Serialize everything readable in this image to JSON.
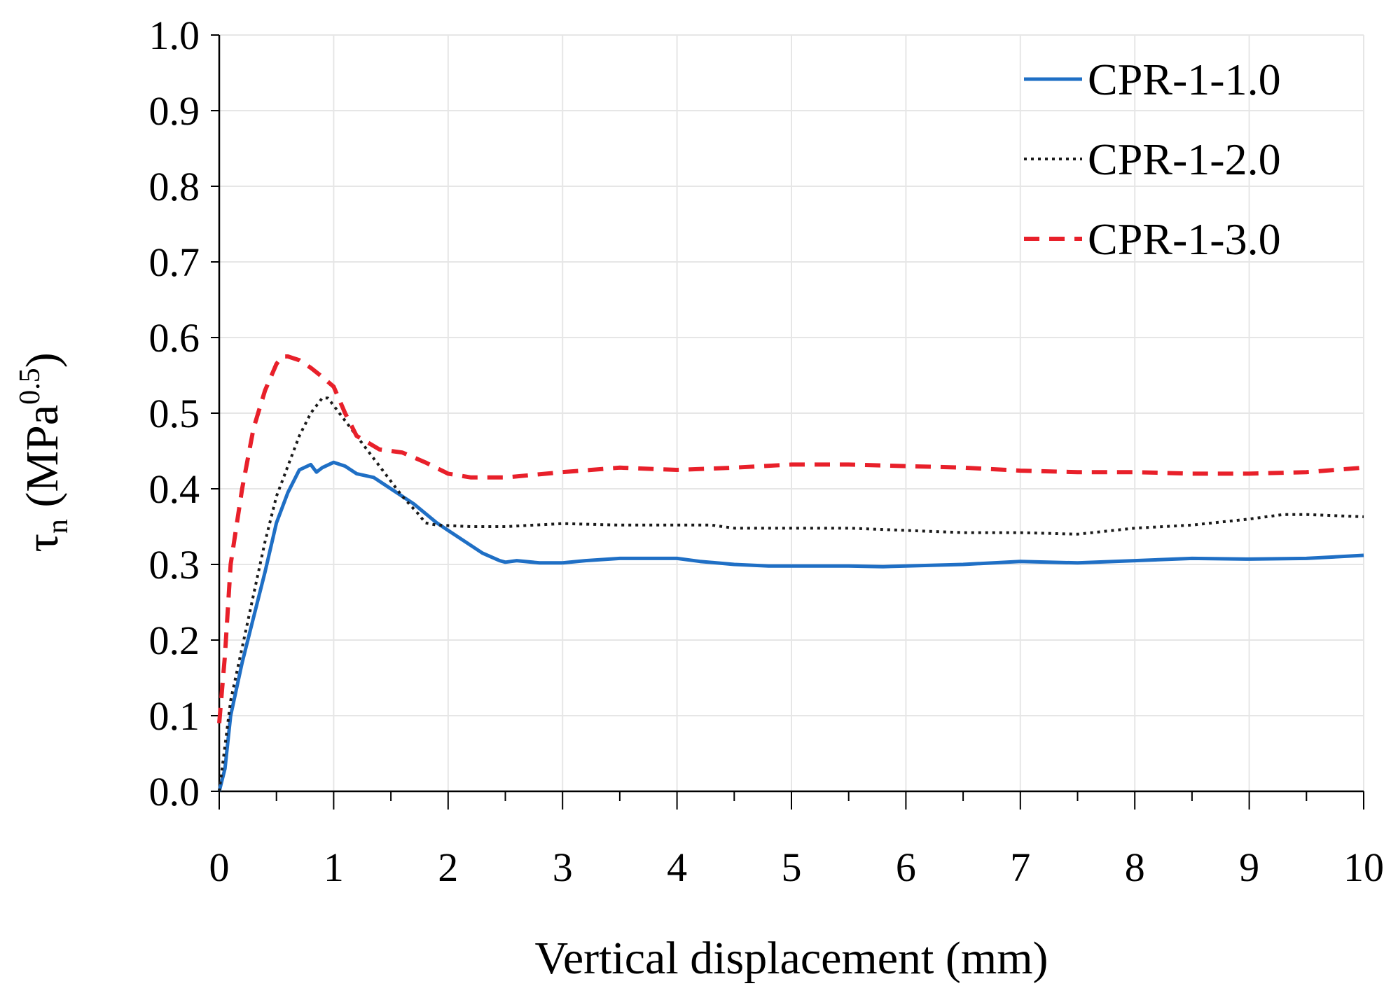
{
  "chart_data": {
    "type": "line",
    "title": "",
    "xlabel": "Vertical displacement (mm)",
    "ylabel": {
      "symbol": "τ",
      "symbol_subscript": "n",
      "unit_open": " (MPa",
      "unit_superscript": "0.5",
      "unit_close": ")"
    },
    "xlim": [
      0,
      10
    ],
    "ylim": [
      0,
      1
    ],
    "x_ticks": [
      "0",
      "1",
      "2",
      "3",
      "4",
      "5",
      "6",
      "7",
      "8",
      "9",
      "10"
    ],
    "x_tick_values": [
      0,
      1,
      2,
      3,
      4,
      5,
      6,
      7,
      8,
      9,
      10
    ],
    "y_ticks": [
      "0.0",
      "0.1",
      "0.2",
      "0.3",
      "0.4",
      "0.5",
      "0.6",
      "0.7",
      "0.8",
      "0.9",
      "1.0"
    ],
    "y_tick_values": [
      0,
      0.1,
      0.2,
      0.3,
      0.4,
      0.5,
      0.6,
      0.7,
      0.8,
      0.9,
      1.0
    ],
    "minor_x_step": 0.5,
    "grid": true,
    "legend_position": "top-right",
    "series": [
      {
        "name": "CPR-1-1.0",
        "color": "#1f6fc5",
        "style": "solid",
        "x": [
          0,
          0.05,
          0.1,
          0.2,
          0.3,
          0.4,
          0.5,
          0.6,
          0.7,
          0.8,
          0.85,
          0.9,
          1.0,
          1.1,
          1.2,
          1.35,
          1.5,
          1.7,
          1.9,
          2.1,
          2.3,
          2.45,
          2.5,
          2.6,
          2.8,
          3.0,
          3.2,
          3.5,
          3.8,
          4.0,
          4.2,
          4.5,
          4.8,
          5.0,
          5.5,
          5.8,
          6.0,
          6.5,
          7.0,
          7.5,
          8.0,
          8.5,
          9.0,
          9.5,
          10.0
        ],
        "values": [
          0.0,
          0.03,
          0.1,
          0.17,
          0.23,
          0.29,
          0.355,
          0.395,
          0.425,
          0.432,
          0.422,
          0.428,
          0.435,
          0.43,
          0.42,
          0.415,
          0.4,
          0.38,
          0.355,
          0.335,
          0.315,
          0.305,
          0.303,
          0.305,
          0.302,
          0.302,
          0.305,
          0.308,
          0.308,
          0.308,
          0.304,
          0.3,
          0.298,
          0.298,
          0.298,
          0.297,
          0.298,
          0.3,
          0.304,
          0.302,
          0.305,
          0.308,
          0.307,
          0.308,
          0.312
        ]
      },
      {
        "name": "CPR-1-2.0",
        "color": "#1a1a1a",
        "style": "dotted",
        "x": [
          0,
          0.05,
          0.1,
          0.2,
          0.3,
          0.4,
          0.5,
          0.6,
          0.7,
          0.8,
          0.85,
          0.9,
          0.95,
          1.0,
          1.2,
          1.4,
          1.6,
          1.75,
          1.8,
          1.9,
          2.2,
          2.5,
          3.0,
          3.5,
          4.0,
          4.3,
          4.5,
          5.0,
          5.5,
          6.0,
          6.5,
          7.0,
          7.5,
          8.0,
          8.5,
          9.0,
          9.3,
          9.5,
          10.0
        ],
        "values": [
          0.0,
          0.06,
          0.12,
          0.19,
          0.26,
          0.33,
          0.39,
          0.43,
          0.47,
          0.5,
          0.51,
          0.52,
          0.52,
          0.51,
          0.47,
          0.43,
          0.39,
          0.365,
          0.355,
          0.352,
          0.35,
          0.35,
          0.354,
          0.352,
          0.352,
          0.352,
          0.348,
          0.348,
          0.348,
          0.345,
          0.342,
          0.342,
          0.34,
          0.348,
          0.352,
          0.36,
          0.366,
          0.366,
          0.363
        ]
      },
      {
        "name": "CPR-1-3.0",
        "color": "#e8202a",
        "style": "dashed",
        "x": [
          0,
          0.05,
          0.1,
          0.2,
          0.3,
          0.4,
          0.5,
          0.55,
          0.6,
          0.7,
          0.8,
          0.9,
          1.0,
          1.1,
          1.2,
          1.4,
          1.6,
          1.8,
          2.0,
          2.2,
          2.5,
          3.0,
          3.5,
          4.0,
          4.5,
          5.0,
          5.5,
          6.0,
          6.5,
          7.0,
          7.5,
          8.0,
          8.5,
          9.0,
          9.5,
          10.0
        ],
        "values": [
          0.09,
          0.18,
          0.3,
          0.4,
          0.48,
          0.53,
          0.565,
          0.575,
          0.575,
          0.57,
          0.56,
          0.548,
          0.535,
          0.5,
          0.47,
          0.452,
          0.448,
          0.435,
          0.42,
          0.415,
          0.415,
          0.422,
          0.428,
          0.425,
          0.428,
          0.432,
          0.432,
          0.43,
          0.428,
          0.424,
          0.422,
          0.422,
          0.42,
          0.42,
          0.422,
          0.428
        ]
      }
    ]
  }
}
